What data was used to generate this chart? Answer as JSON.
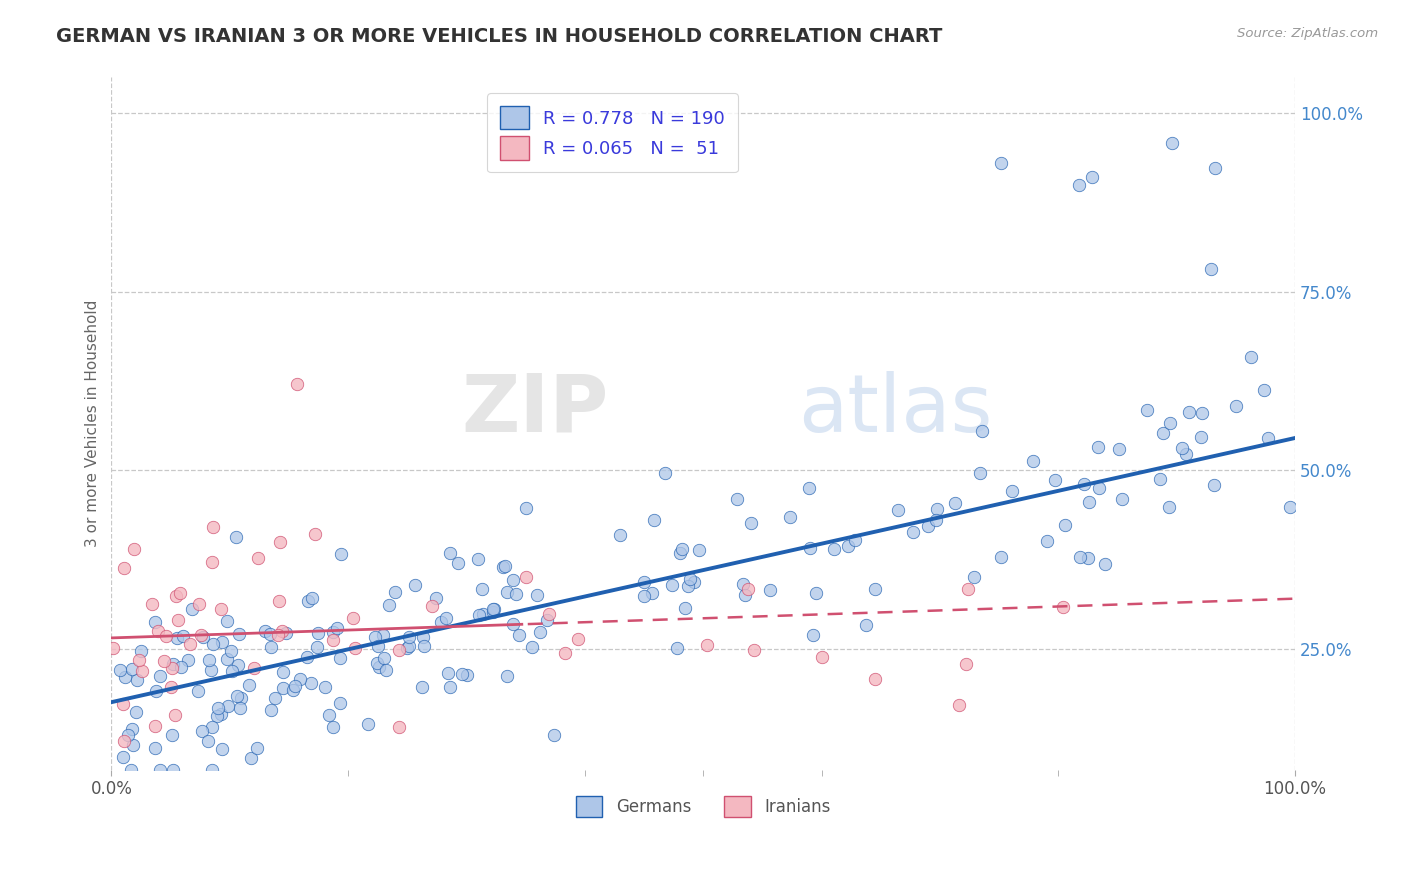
{
  "title": "GERMAN VS IRANIAN 3 OR MORE VEHICLES IN HOUSEHOLD CORRELATION CHART",
  "source": "Source: ZipAtlas.com",
  "ylabel": "3 or more Vehicles in Household",
  "xlim": [
    0.0,
    1.0
  ],
  "ylim": [
    0.08,
    1.05
  ],
  "x_tick_labels": [
    "0.0%",
    "100.0%"
  ],
  "y_tick_labels": [
    "25.0%",
    "50.0%",
    "75.0%",
    "100.0%"
  ],
  "y_tick_positions": [
    0.25,
    0.5,
    0.75,
    1.0
  ],
  "background_color": "#ffffff",
  "grid_color": "#c8c8c8",
  "watermark_zip": "ZIP",
  "watermark_atlas": "atlas",
  "legend_labels": [
    "Germans",
    "Iranians"
  ],
  "german_color": "#aec6e8",
  "iranian_color": "#f4b8c1",
  "german_line_color": "#2060b0",
  "iranian_line_color": "#d05070",
  "R_german": 0.778,
  "N_german": 190,
  "R_iranian": 0.065,
  "N_iranian": 51,
  "legend_text_color": "#3a3adb",
  "title_color": "#333333",
  "title_fontsize": 14,
  "slope_german": 0.37,
  "intercept_german": 0.175,
  "slope_iranian": 0.055,
  "intercept_iranian": 0.265
}
